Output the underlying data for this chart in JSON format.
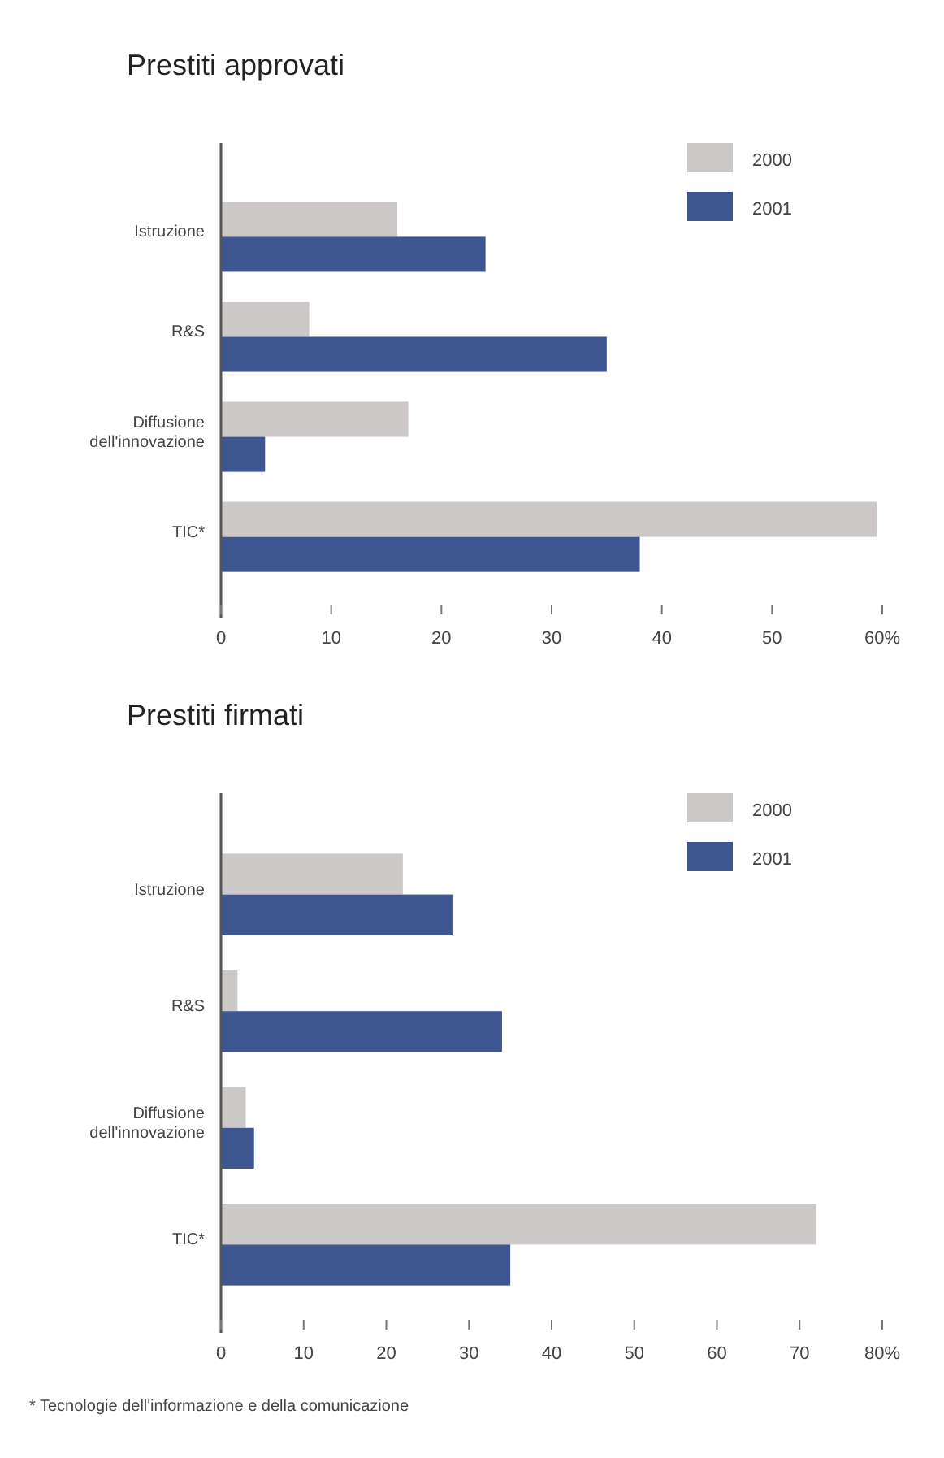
{
  "chart_data": [
    {
      "type": "bar",
      "orientation": "horizontal",
      "title": "Prestiti approvati",
      "categories": [
        "Istruzione",
        "R&S",
        "Diffusione dell'innovazione",
        "TIC*"
      ],
      "series": [
        {
          "name": "2000",
          "color": "#cdc8c8",
          "values": [
            16,
            8,
            17,
            59.5
          ]
        },
        {
          "name": "2001",
          "color": "#3d5590",
          "values": [
            24,
            35,
            4,
            38
          ]
        }
      ],
      "xlim": [
        0,
        60
      ],
      "xticks": [
        0,
        10,
        20,
        30,
        40,
        50,
        {
          "value": 60,
          "label": "60%"
        }
      ],
      "legend": "top right",
      "grid": false
    },
    {
      "type": "bar",
      "orientation": "horizontal",
      "title": "Prestiti firmati",
      "categories": [
        "Istruzione",
        "R&S",
        "Diffusione dell'innovazione",
        "TIC*"
      ],
      "series": [
        {
          "name": "2000",
          "color": "#cdc8c8",
          "values": [
            22,
            2,
            3,
            72
          ]
        },
        {
          "name": "2001",
          "color": "#3d5590",
          "values": [
            28,
            34,
            4,
            35
          ]
        }
      ],
      "xlim": [
        0,
        80
      ],
      "xticks": [
        0,
        10,
        20,
        30,
        40,
        50,
        60,
        70,
        {
          "value": 80,
          "label": "80%"
        }
      ],
      "legend": "top right",
      "grid": false,
      "annotations": [
        "* Tecnologie dell'informazione e della comunicazione"
      ]
    }
  ]
}
